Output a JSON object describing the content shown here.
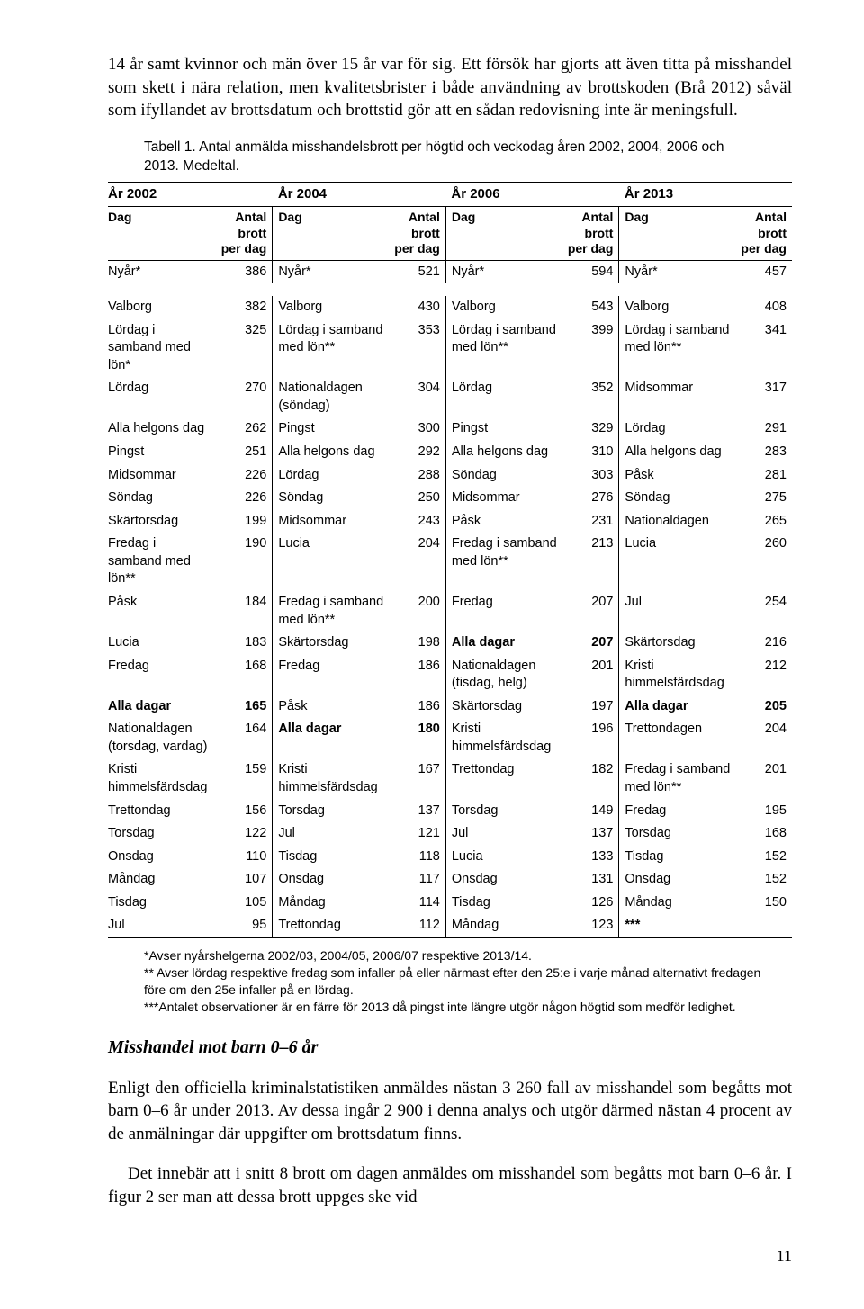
{
  "intro_paragraph": "14 år samt kvinnor och män över 15 år var för sig. Ett försök har gjorts att även titta på misshandel som skett i nära relation, men kvalitetsbrister i både användning av brottskoden (Brå 2012) såväl som ifyllandet av brottsdatum och brottstid gör att en sådan redovisning inte är meningsfull.",
  "table_caption": "Tabell 1. Antal anmälda misshandelsbrott per högtid och veckodag åren 2002, 2004, 2006 och 2013. Medeltal.",
  "year_headers": [
    "År 2002",
    "År 2004",
    "År 2006",
    "År 2013"
  ],
  "col_day": "Dag",
  "col_val": "Antal brott per dag",
  "bold_terms": [
    "Alla dagar",
    "***"
  ],
  "rows": [
    [
      [
        "Nyår*",
        "386"
      ],
      [
        "Nyår*",
        "521"
      ],
      [
        "Nyår*",
        "594"
      ],
      [
        "Nyår*",
        "457"
      ]
    ],
    [
      [
        "Valborg",
        "382"
      ],
      [
        "Valborg",
        "430"
      ],
      [
        "Valborg",
        "543"
      ],
      [
        "Valborg",
        "408"
      ]
    ],
    [
      [
        "Lördag i samband med lön*",
        "325"
      ],
      [
        "Lördag i samband med lön**",
        "353"
      ],
      [
        "Lördag i samband med lön**",
        "399"
      ],
      [
        "Lördag i samband med lön**",
        "341"
      ]
    ],
    [
      [
        "Lördag",
        "270"
      ],
      [
        "Nationaldagen (söndag)",
        "304"
      ],
      [
        "Lördag",
        "352"
      ],
      [
        "Midsommar",
        "317"
      ]
    ],
    [
      [
        "Alla helgons dag",
        "262"
      ],
      [
        "Pingst",
        "300"
      ],
      [
        "Pingst",
        "329"
      ],
      [
        "Lördag",
        "291"
      ]
    ],
    [
      [
        "Pingst",
        "251"
      ],
      [
        "Alla helgons dag",
        "292"
      ],
      [
        "Alla helgons dag",
        "310"
      ],
      [
        "Alla helgons dag",
        "283"
      ]
    ],
    [
      [
        "Midsommar",
        "226"
      ],
      [
        "Lördag",
        "288"
      ],
      [
        "Söndag",
        "303"
      ],
      [
        "Påsk",
        "281"
      ]
    ],
    [
      [
        "Söndag",
        "226"
      ],
      [
        "Söndag",
        "250"
      ],
      [
        "Midsommar",
        "276"
      ],
      [
        "Söndag",
        "275"
      ]
    ],
    [
      [
        "Skärtorsdag",
        "199"
      ],
      [
        "Midsommar",
        "243"
      ],
      [
        "Påsk",
        "231"
      ],
      [
        "Nationaldagen",
        "265"
      ]
    ],
    [
      [
        "Fredag i samband med lön**",
        "190"
      ],
      [
        "Lucia",
        "204"
      ],
      [
        "Fredag i samband med lön**",
        "213"
      ],
      [
        "Lucia",
        "260"
      ]
    ],
    [
      [
        "Påsk",
        "184"
      ],
      [
        "Fredag i samband med lön**",
        "200"
      ],
      [
        "Fredag",
        "207"
      ],
      [
        "Jul",
        "254"
      ]
    ],
    [
      [
        "Lucia",
        "183"
      ],
      [
        "Skärtorsdag",
        "198"
      ],
      [
        "Alla dagar",
        "207"
      ],
      [
        "Skärtorsdag",
        "216"
      ]
    ],
    [
      [
        "Fredag",
        "168"
      ],
      [
        "Fredag",
        "186"
      ],
      [
        "Nationaldagen (tisdag, helg)",
        "201"
      ],
      [
        "Kristi himmelsfärdsdag",
        "212"
      ]
    ],
    [
      [
        "Alla dagar",
        "165"
      ],
      [
        "Påsk",
        "186"
      ],
      [
        "Skärtorsdag",
        "197"
      ],
      [
        "Alla dagar",
        "205"
      ]
    ],
    [
      [
        "Nationaldagen (torsdag, vardag)",
        "164"
      ],
      [
        "Alla dagar",
        "180"
      ],
      [
        "Kristi himmelsfärdsdag",
        "196"
      ],
      [
        "Trettondagen",
        "204"
      ]
    ],
    [
      [
        "Kristi himmelsfärdsdag",
        "159"
      ],
      [
        "Kristi himmelsfärdsdag",
        "167"
      ],
      [
        "Trettondag",
        "182"
      ],
      [
        "Fredag i samband med lön**",
        "201"
      ]
    ],
    [
      [
        "Trettondag",
        "156"
      ],
      [
        "Torsdag",
        "137"
      ],
      [
        "Torsdag",
        "149"
      ],
      [
        "Fredag",
        "195"
      ]
    ],
    [
      [
        "Torsdag",
        "122"
      ],
      [
        "Jul",
        "121"
      ],
      [
        "Jul",
        "137"
      ],
      [
        "Torsdag",
        "168"
      ]
    ],
    [
      [
        "Onsdag",
        "110"
      ],
      [
        "Tisdag",
        "118"
      ],
      [
        "Lucia",
        "133"
      ],
      [
        "Tisdag",
        "152"
      ]
    ],
    [
      [
        "Måndag",
        "107"
      ],
      [
        "Onsdag",
        "117"
      ],
      [
        "Onsdag",
        "131"
      ],
      [
        "Onsdag",
        "152"
      ]
    ],
    [
      [
        "Tisdag",
        "105"
      ],
      [
        "Måndag",
        "114"
      ],
      [
        "Tisdag",
        "126"
      ],
      [
        "Måndag",
        "150"
      ]
    ],
    [
      [
        "Jul",
        "95"
      ],
      [
        "Trettondag",
        "112"
      ],
      [
        "Måndag",
        "123"
      ],
      [
        "***",
        ""
      ]
    ]
  ],
  "footnotes": [
    "*Avser nyårshelgerna 2002/03, 2004/05, 2006/07 respektive 2013/14.",
    "** Avser lördag respektive fredag som infaller på eller närmast efter den 25:e i varje månad alternativt fredagen före om den 25e infaller på en lördag.",
    "***Antalet observationer är en färre för 2013 då pingst inte längre utgör någon högtid som medför ledighet."
  ],
  "section_heading": "Misshandel mot barn 0–6 år",
  "body_p1": "Enligt den officiella kriminalstatistiken anmäldes nästan 3 260 fall av misshandel som begåtts mot barn 0–6 år under 2013. Av dessa ingår 2 900 i denna analys och utgör därmed nästan 4 procent av de anmälningar där uppgifter om brottsdatum finns.",
  "body_p2": "Det innebär att i snitt 8 brott om dagen anmäldes om misshandel som begåtts mot barn 0–6 år. I figur 2 ser man att dessa brott uppges ske vid",
  "page_number": "11",
  "col_widths": [
    "16.5%",
    "6%",
    "18.5%",
    "6%",
    "18.5%",
    "6%",
    "18.5%",
    "6%"
  ]
}
